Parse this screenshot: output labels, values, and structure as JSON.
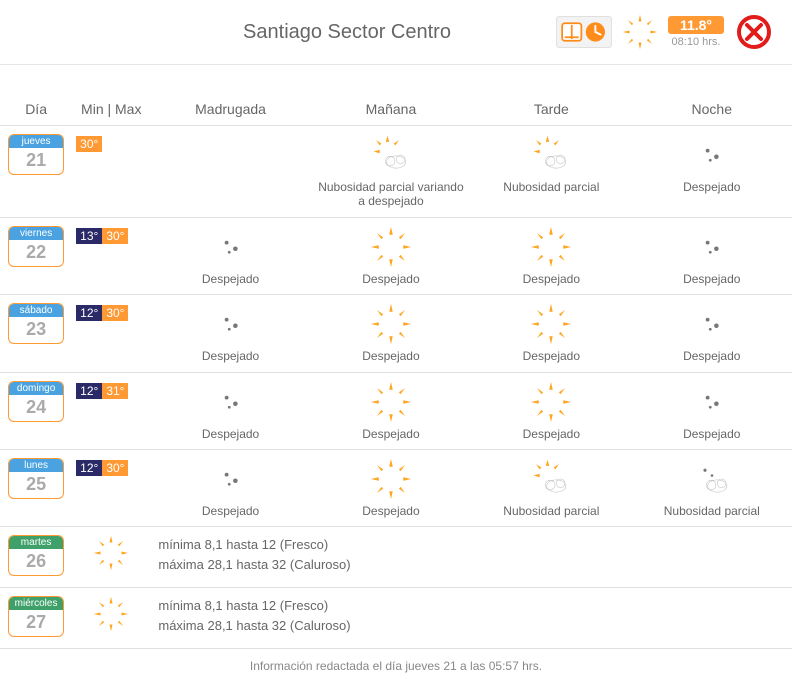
{
  "header": {
    "title": "Santiago Sector Centro",
    "current_temp": "11.8°",
    "current_time": "08:10 hrs."
  },
  "columns": {
    "dia": "Día",
    "minmax": "Min | Max",
    "p0": "Madrugada",
    "p1": "Mañana",
    "p2": "Tarde",
    "p3": "Noche"
  },
  "rows": [
    {
      "dname": "jueves",
      "dnum": "21",
      "min": null,
      "max": "30°",
      "chip_style": "std",
      "cells": [
        null,
        {
          "icon": "sun-cloud",
          "label": "Nubosidad parcial variando a despejado"
        },
        {
          "icon": "sun-cloud",
          "label": "Nubosidad parcial"
        },
        {
          "icon": "moon",
          "label": "Despejado"
        }
      ]
    },
    {
      "dname": "viernes",
      "dnum": "22",
      "min": "13°",
      "max": "30°",
      "chip_style": "std",
      "cells": [
        {
          "icon": "moon",
          "label": "Despejado"
        },
        {
          "icon": "sun",
          "label": "Despejado"
        },
        {
          "icon": "sun",
          "label": "Despejado"
        },
        {
          "icon": "moon",
          "label": "Despejado"
        }
      ]
    },
    {
      "dname": "sábado",
      "dnum": "23",
      "min": "12°",
      "max": "30°",
      "chip_style": "std",
      "cells": [
        {
          "icon": "moon",
          "label": "Despejado"
        },
        {
          "icon": "sun",
          "label": "Despejado"
        },
        {
          "icon": "sun",
          "label": "Despejado"
        },
        {
          "icon": "moon",
          "label": "Despejado"
        }
      ]
    },
    {
      "dname": "domingo",
      "dnum": "24",
      "min": "12°",
      "max": "31°",
      "chip_style": "std",
      "cells": [
        {
          "icon": "moon",
          "label": "Despejado"
        },
        {
          "icon": "sun",
          "label": "Despejado"
        },
        {
          "icon": "sun",
          "label": "Despejado"
        },
        {
          "icon": "moon",
          "label": "Despejado"
        }
      ]
    },
    {
      "dname": "lunes",
      "dnum": "25",
      "min": "12°",
      "max": "30°",
      "chip_style": "std",
      "cells": [
        {
          "icon": "moon",
          "label": "Despejado"
        },
        {
          "icon": "sun",
          "label": "Despejado"
        },
        {
          "icon": "sun-cloud",
          "label": "Nubosidad parcial"
        },
        {
          "icon": "moon-cloud",
          "label": "Nubosidad parcial"
        }
      ]
    }
  ],
  "ext_rows": [
    {
      "dname": "martes",
      "dnum": "26",
      "icon": "sun",
      "chip_style": "alt",
      "line1": "mínima 8,1 hasta 12 (Fresco)",
      "line2": "máxima 28,1 hasta 32 (Caluroso)"
    },
    {
      "dname": "miércoles",
      "dnum": "27",
      "icon": "sun",
      "chip_style": "alt",
      "line1": "mínima 8,1 hasta 12 (Fresco)",
      "line2": "máxima 28,1 hasta 32 (Caluroso)"
    }
  ],
  "footer": "Información redactada el día jueves 21 a las 05:57 hrs."
}
